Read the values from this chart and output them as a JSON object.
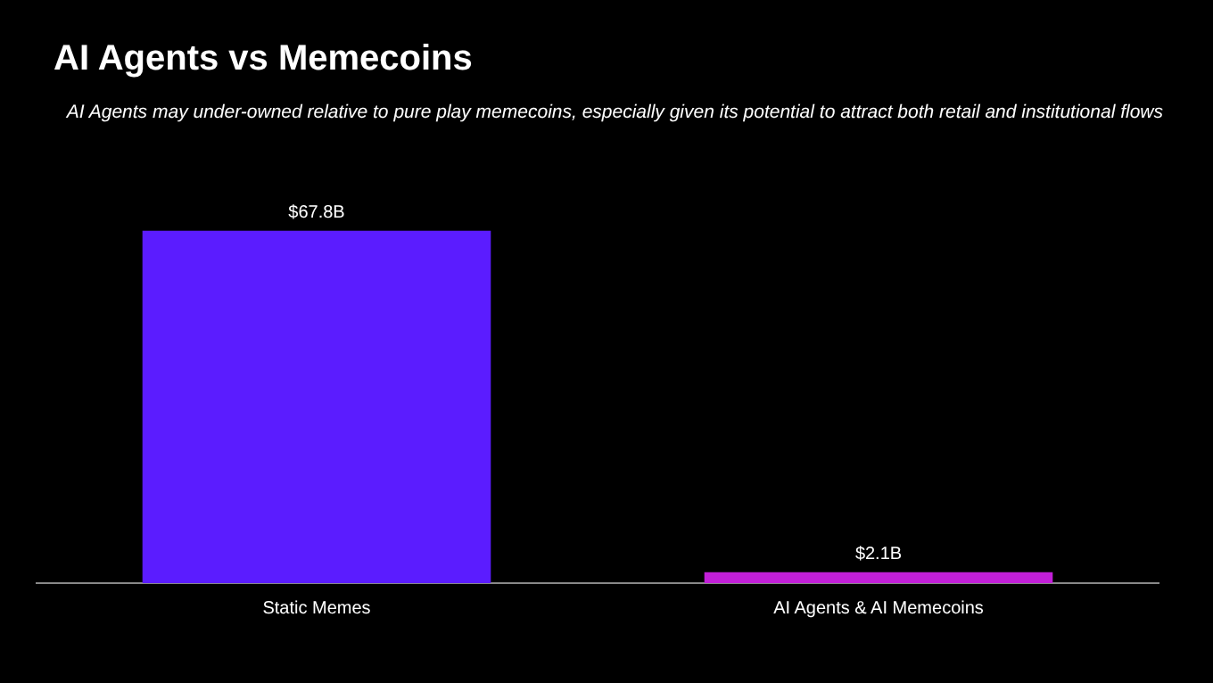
{
  "chart_data": {
    "type": "bar",
    "title": "AI Agents vs Memecoins",
    "subtitle": "AI Agents may under-owned relative to pure play memecoins, especially given its potential to attract both retail and institutional flows",
    "categories": [
      "Static Memes",
      "AI Agents & AI Memecoins"
    ],
    "values": [
      67.8,
      2.1
    ],
    "colors": [
      "#5b1cff",
      "#c21fd8"
    ],
    "value_labels": [
      "$67.8B",
      "$2.1B"
    ]
  }
}
